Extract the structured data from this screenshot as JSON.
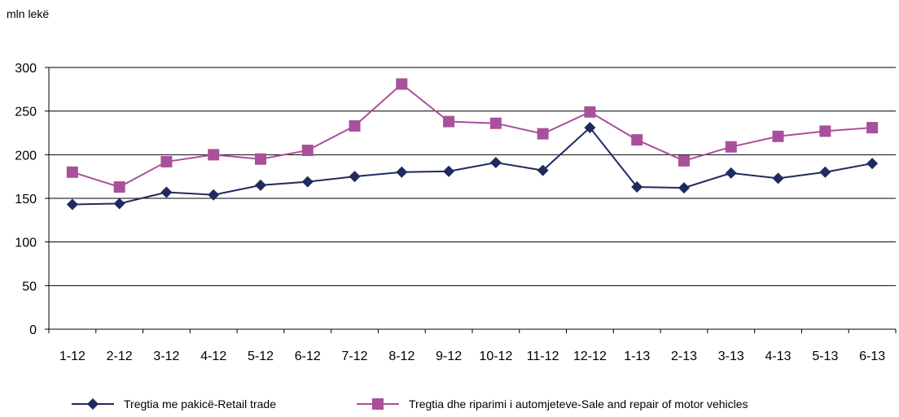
{
  "chart_data": {
    "type": "line",
    "unit_label": "mln lekë",
    "categories": [
      "1-12",
      "2-12",
      "3-12",
      "4-12",
      "5-12",
      "6-12",
      "7-12",
      "8-12",
      "9-12",
      "10-12",
      "11-12",
      "12-12",
      "1-13",
      "2-13",
      "3-13",
      "4-13",
      "5-13",
      "6-13"
    ],
    "ylim": [
      0,
      300
    ],
    "yticks": [
      0,
      50,
      100,
      150,
      200,
      250,
      300
    ],
    "grid": true,
    "legend_position": "bottom",
    "series": [
      {
        "name": "Tregtia me pakicë-Retail trade",
        "color": "#1f2a5e",
        "marker": "diamond",
        "values": [
          143,
          144,
          157,
          154,
          165,
          169,
          175,
          180,
          181,
          191,
          182,
          231,
          163,
          162,
          179,
          173,
          180,
          190
        ]
      },
      {
        "name": "Tregtia dhe riparimi i automjeteve-Sale and repair of motor vehicles",
        "color": "#a8509a",
        "marker": "square",
        "values": [
          180,
          163,
          192,
          200,
          195,
          205,
          233,
          281,
          238,
          236,
          224,
          249,
          217,
          193,
          209,
          221,
          227,
          231
        ]
      }
    ]
  }
}
